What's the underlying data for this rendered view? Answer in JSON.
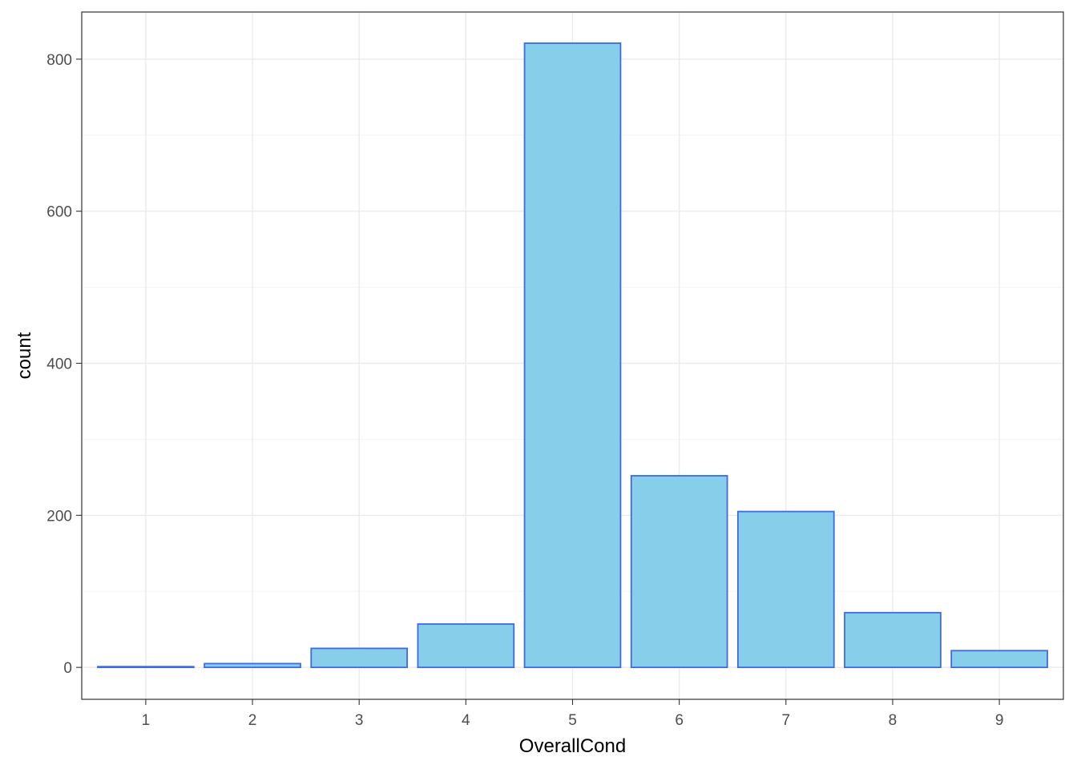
{
  "chart_data": {
    "type": "bar",
    "title": "",
    "xlabel": "OverallCond",
    "ylabel": "count",
    "categories": [
      "1",
      "2",
      "3",
      "4",
      "5",
      "6",
      "7",
      "8",
      "9"
    ],
    "values": [
      1,
      5,
      25,
      57,
      821,
      252,
      205,
      72,
      22
    ],
    "ylim": [
      -42,
      862
    ],
    "y_ticks": [
      0,
      200,
      400,
      600,
      800
    ],
    "y_tick_labels": [
      "0",
      "200",
      "400",
      "600",
      "800"
    ],
    "grid": true,
    "legend": "none",
    "colors": {
      "bar_fill": "#87ceeb",
      "bar_stroke": "#4169e1",
      "panel_background": "#ffffff",
      "grid": "#ebebeb"
    }
  }
}
